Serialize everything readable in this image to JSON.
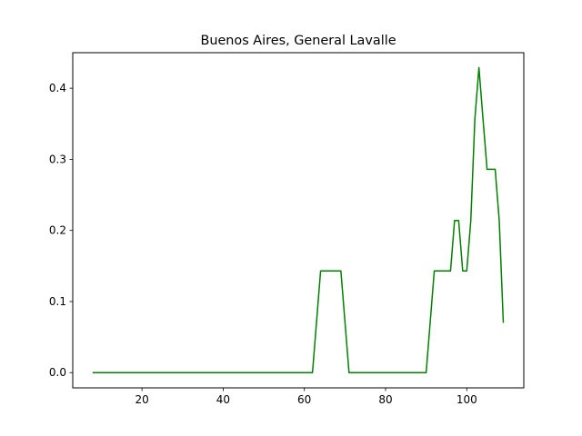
{
  "chart_data": {
    "type": "line",
    "title": "Buenos Aires, General Lavalle",
    "xlabel": "",
    "ylabel": "",
    "xlim": [
      2.95,
      114.05
    ],
    "ylim": [
      -0.0214,
      0.45
    ],
    "xticks": [
      20,
      40,
      60,
      80,
      100
    ],
    "yticks": [
      0.0,
      0.1,
      0.2,
      0.3,
      0.4
    ],
    "xtick_labels": [
      "20",
      "40",
      "60",
      "80",
      "100"
    ],
    "ytick_labels": [
      "0.0",
      "0.1",
      "0.2",
      "0.3",
      "0.4"
    ],
    "grid": false,
    "legend": "none",
    "series": [
      {
        "color": "#008000",
        "x": [
          8,
          62,
          64,
          69,
          71,
          90,
          92,
          96,
          97,
          98,
          99,
          100,
          101,
          102,
          103,
          104,
          105,
          107,
          108,
          109
        ],
        "y": [
          0.0,
          0.0,
          0.143,
          0.143,
          0.0,
          0.0,
          0.143,
          0.143,
          0.214,
          0.214,
          0.143,
          0.143,
          0.214,
          0.357,
          0.429,
          0.357,
          0.286,
          0.286,
          0.214,
          0.071
        ]
      }
    ]
  }
}
